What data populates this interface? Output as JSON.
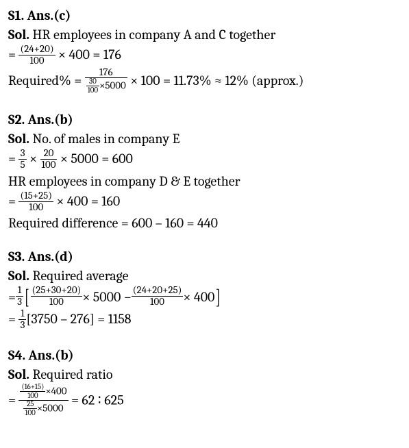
{
  "s1": {
    "header": "S1. Ans.(c)",
    "sol_label": "Sol.",
    "line1_text": " HR employees in company A and C together",
    "eq_prefix": "= ",
    "frac1_num": "(24+20)",
    "frac1_den": "100",
    "frac1_after": " × 400 = 176",
    "req_label": "Required% = ",
    "frac2_num": "176",
    "frac2_den_inner_num": "30",
    "frac2_den_inner_den": "100",
    "frac2_den_tail": "×5000",
    "req_tail": " × 100 = 11.73% ≈ 12% (approx.)"
  },
  "s2": {
    "header": "S2. Ans.(b)",
    "sol_label": "Sol.",
    "line1_text": " No. of males in company E",
    "eq_prefix": "= ",
    "fracA_num": "3",
    "fracA_den": "5",
    "mid_times": " × ",
    "fracB_num": "20",
    "fracB_den": "100",
    "line2_tail": " × 5000 = 600",
    "line3_text": "HR employees in company D & E together",
    "fracC_num": "(15+25)",
    "fracC_den": "100",
    "line4_tail": " × 400 = 160",
    "line5_text": "Required difference = 600 – 160 = 440"
  },
  "s3": {
    "header": "S3. Ans.(d)",
    "sol_label": "Sol.",
    "line1_text": " Required average",
    "eq_prefix": "= ",
    "frac1_num": "1",
    "frac1_den": "3",
    "bracket_open": "[",
    "fracL_num": "(25+30+20)",
    "fracL_den": "100",
    "mid_text": " × 5000 − ",
    "fracR_num": "(24+20+25)",
    "fracR_den": "100",
    "right_tail": " × 400",
    "bracket_close": "]",
    "line3_prefix": "= ",
    "frac2_num": "1",
    "frac2_den": "3",
    "line3_tail": "[3750 – 276] = 1158"
  },
  "s4": {
    "header": "S4. Ans.(b)",
    "sol_label": "Sol.",
    "line1_text": " Required ratio",
    "eq_prefix": "= ",
    "big_num_inner_num": "(16+15)",
    "big_num_inner_den": "100",
    "big_num_tail": "×400",
    "big_den_inner_num": "25",
    "big_den_inner_den": "100",
    "big_den_tail": "×5000",
    "result": " = 62 ∶ 625"
  }
}
